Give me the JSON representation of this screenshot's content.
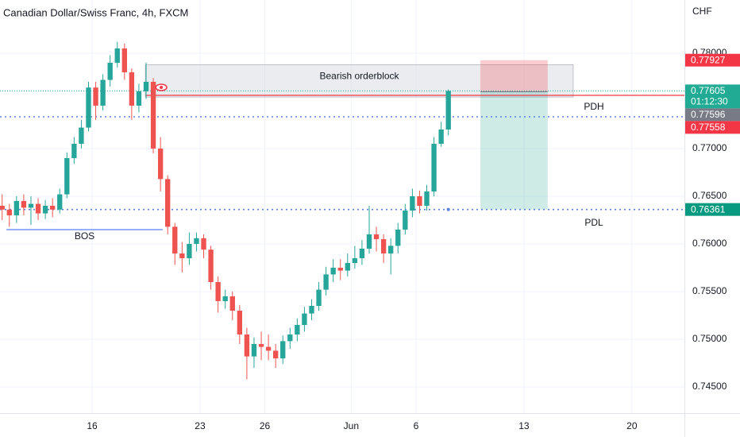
{
  "chart_data": {
    "type": "candlestick",
    "title": "Canadian Dollar/Swiss Franc, 4h, FXCM",
    "currency_label": "CHF",
    "up_color": "#26a69a",
    "down_color": "#ef5350",
    "grid": true,
    "xlim": [
      -25.6,
      164.6
    ],
    "xticks": [
      {
        "value": 0,
        "label": "16"
      },
      {
        "value": 30,
        "label": "23"
      },
      {
        "value": 48,
        "label": "26"
      },
      {
        "value": 72,
        "label": "Jun"
      },
      {
        "value": 90,
        "label": "6"
      },
      {
        "value": 120,
        "label": "13"
      },
      {
        "value": 150,
        "label": "20"
      }
    ],
    "ylim": [
      0.74225,
      0.78558
    ],
    "yticks": [
      {
        "value": 0.745,
        "label": "0.74500"
      },
      {
        "value": 0.75,
        "label": "0.75000"
      },
      {
        "value": 0.755,
        "label": "0.75500"
      },
      {
        "value": 0.76,
        "label": "0.76000"
      },
      {
        "value": 0.765,
        "label": "0.76500"
      },
      {
        "value": 0.77,
        "label": "0.77000"
      },
      {
        "value": 0.78,
        "label": "0.78000"
      }
    ],
    "x": [
      -25,
      -23,
      -21,
      -19,
      -17,
      -15,
      -13,
      -11,
      -9,
      -7,
      -5,
      -3,
      -1,
      1,
      3,
      5,
      7,
      9,
      11,
      13,
      15,
      17,
      19,
      21,
      23,
      25,
      27,
      29,
      31,
      33,
      35,
      37,
      39,
      41,
      43,
      45,
      47,
      49,
      51,
      53,
      55,
      57,
      59,
      61,
      63,
      65,
      67,
      69,
      71,
      73,
      75,
      77,
      79,
      81,
      83,
      85,
      87,
      89,
      91,
      93,
      95,
      97,
      99
    ],
    "open": [
      0.764,
      0.7636,
      0.763,
      0.7645,
      0.7638,
      0.7642,
      0.7632,
      0.764,
      0.7636,
      0.7652,
      0.769,
      0.7705,
      0.7722,
      0.7764,
      0.7745,
      0.7772,
      0.779,
      0.7805,
      0.778,
      0.7745,
      0.776,
      0.777,
      0.77,
      0.7668,
      0.7618,
      0.759,
      0.7585,
      0.76,
      0.7606,
      0.7594,
      0.756,
      0.754,
      0.7545,
      0.753,
      0.7505,
      0.7482,
      0.7495,
      0.7492,
      0.7488,
      0.748,
      0.7498,
      0.7505,
      0.7515,
      0.7527,
      0.7535,
      0.7552,
      0.7568,
      0.7575,
      0.7572,
      0.758,
      0.7585,
      0.7595,
      0.761,
      0.7605,
      0.759,
      0.7598,
      0.7615,
      0.7635,
      0.765,
      0.764,
      0.7655,
      0.7705,
      0.772
    ],
    "high": [
      0.7652,
      0.7642,
      0.765,
      0.7652,
      0.765,
      0.7648,
      0.7646,
      0.7648,
      0.7658,
      0.7696,
      0.7712,
      0.773,
      0.777,
      0.777,
      0.7778,
      0.7798,
      0.7812,
      0.781,
      0.7784,
      0.7768,
      0.779,
      0.7774,
      0.7712,
      0.7672,
      0.7622,
      0.7602,
      0.7612,
      0.7612,
      0.761,
      0.7598,
      0.7566,
      0.7552,
      0.755,
      0.7536,
      0.7512,
      0.7502,
      0.7508,
      0.7505,
      0.7495,
      0.7504,
      0.7512,
      0.7522,
      0.7534,
      0.7542,
      0.756,
      0.7576,
      0.7584,
      0.7584,
      0.759,
      0.7598,
      0.7604,
      0.764,
      0.7618,
      0.761,
      0.7606,
      0.7622,
      0.7642,
      0.7658,
      0.7656,
      0.7662,
      0.7712,
      0.7728,
      0.7762
    ],
    "low": [
      0.7625,
      0.7618,
      0.7622,
      0.763,
      0.762,
      0.7625,
      0.7626,
      0.7628,
      0.7632,
      0.7648,
      0.7684,
      0.77,
      0.7718,
      0.773,
      0.774,
      0.7765,
      0.7785,
      0.7772,
      0.773,
      0.7738,
      0.7752,
      0.7695,
      0.7655,
      0.761,
      0.7578,
      0.757,
      0.7578,
      0.7592,
      0.7585,
      0.7552,
      0.7528,
      0.7532,
      0.752,
      0.7495,
      0.7458,
      0.747,
      0.7478,
      0.7478,
      0.747,
      0.7474,
      0.749,
      0.7498,
      0.7508,
      0.752,
      0.753,
      0.7546,
      0.756,
      0.7562,
      0.7566,
      0.7574,
      0.7578,
      0.759,
      0.7592,
      0.758,
      0.7568,
      0.759,
      0.761,
      0.7628,
      0.7632,
      0.7635,
      0.765,
      0.7702,
      0.7714
    ],
    "close": [
      0.7636,
      0.763,
      0.7645,
      0.7638,
      0.7642,
      0.7632,
      0.764,
      0.7636,
      0.7652,
      0.769,
      0.7705,
      0.7722,
      0.7764,
      0.7745,
      0.7772,
      0.779,
      0.7805,
      0.778,
      0.7745,
      0.776,
      0.777,
      0.77,
      0.7668,
      0.7618,
      0.759,
      0.7585,
      0.76,
      0.7606,
      0.7594,
      0.756,
      0.754,
      0.7545,
      0.753,
      0.7505,
      0.7482,
      0.7495,
      0.7492,
      0.7488,
      0.748,
      0.7498,
      0.7505,
      0.7515,
      0.7527,
      0.7535,
      0.7552,
      0.7568,
      0.7575,
      0.7572,
      0.758,
      0.7585,
      0.7595,
      0.761,
      0.7605,
      0.759,
      0.7598,
      0.7615,
      0.7635,
      0.765,
      0.764,
      0.7655,
      0.7705,
      0.772,
      0.77605
    ],
    "zone": {
      "label": "Bearish orderblock",
      "x": [
        14.8,
        133.7
      ],
      "y": [
        0.7754,
        0.7788
      ],
      "color": "#d1d4dc"
    },
    "position": {
      "x": [
        107.9,
        126.6
      ],
      "stop": 0.77927,
      "entry": 0.77596,
      "target": 0.76361,
      "stop_color": "#f23645",
      "entry_color": "#787b86",
      "target_color": "#089981"
    },
    "last_price": {
      "value": 0.77605,
      "countdown": "01:12:30",
      "color": "#22ab94"
    },
    "alert_line": {
      "value": 0.77558,
      "x_start": 14.8,
      "color": "#f23645"
    },
    "pdh": {
      "label": "PDH",
      "value": 0.77333,
      "color": "#5b7fdc"
    },
    "pdl": {
      "label": "PDL",
      "value": 0.76361,
      "color": "#5b7fdc"
    },
    "bos": {
      "label": "BOS",
      "value": 0.7615,
      "x": [
        -23.8,
        19.6
      ],
      "color": "#2962ff"
    }
  }
}
